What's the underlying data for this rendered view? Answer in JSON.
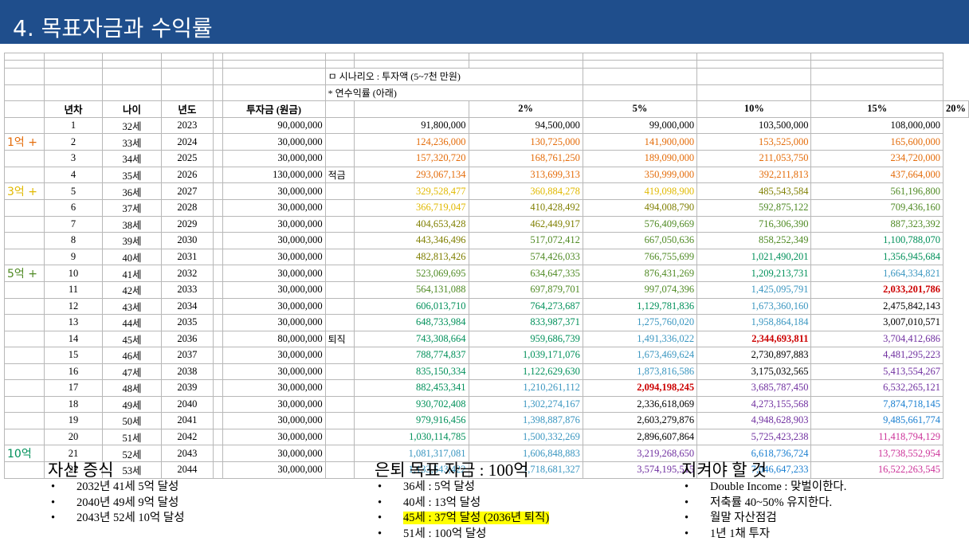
{
  "header": {
    "title": "4. 목표자금과 수익률",
    "bg": "#1f4e8c"
  },
  "table": {
    "scenario_line": "ㅁ 시나리오 : 투자액 (5~7천 만원)",
    "rate_line": "* 연수익률 (아래)",
    "headers": [
      "년차",
      "나이",
      "년도",
      "투자금 (원금)",
      "2%",
      "5%",
      "10%",
      "15%",
      "20%"
    ],
    "rows": [
      {
        "mark": "",
        "n": "1",
        "age": "32세",
        "year": "2023",
        "inv": "90,000,000",
        "note": "",
        "v": [
          "91,800,000",
          "94,500,000",
          "99,000,000",
          "103,500,000",
          "108,000,000"
        ],
        "c": [
          "#000000",
          "#000000",
          "#000000",
          "#000000",
          "#000000"
        ]
      },
      {
        "mark": "1억 +",
        "n": "2",
        "age": "33세",
        "year": "2024",
        "inv": "30,000,000",
        "note": "",
        "v": [
          "124,236,000",
          "130,725,000",
          "141,900,000",
          "153,525,000",
          "165,600,000"
        ],
        "c": [
          "#e46c0a",
          "#e46c0a",
          "#e46c0a",
          "#e46c0a",
          "#e46c0a"
        ]
      },
      {
        "mark": "",
        "n": "3",
        "age": "34세",
        "year": "2025",
        "inv": "30,000,000",
        "note": "",
        "v": [
          "157,320,720",
          "168,761,250",
          "189,090,000",
          "211,053,750",
          "234,720,000"
        ],
        "c": [
          "#e46c0a",
          "#e46c0a",
          "#e46c0a",
          "#e46c0a",
          "#e46c0a"
        ]
      },
      {
        "mark": "",
        "n": "4",
        "age": "35세",
        "year": "2026",
        "inv": "130,000,000",
        "note": "적금",
        "v": [
          "293,067,134",
          "313,699,313",
          "350,999,000",
          "392,211,813",
          "437,664,000"
        ],
        "c": [
          "#e46c0a",
          "#e46c0a",
          "#e46c0a",
          "#e46c0a",
          "#e46c0a"
        ]
      },
      {
        "mark": "3억 +",
        "n": "5",
        "age": "36세",
        "year": "2027",
        "inv": "30,000,000",
        "note": "",
        "v": [
          "329,528,477",
          "360,884,278",
          "419,098,900",
          "485,543,584",
          "561,196,800"
        ],
        "c": [
          "#e1b900",
          "#e1b900",
          "#e1b900",
          "#7f7f00",
          "#4f8a24"
        ]
      },
      {
        "mark": "",
        "n": "6",
        "age": "37세",
        "year": "2028",
        "inv": "30,000,000",
        "note": "",
        "v": [
          "366,719,047",
          "410,428,492",
          "494,008,790",
          "592,875,122",
          "709,436,160"
        ],
        "c": [
          "#e1b900",
          "#7f7f00",
          "#7f7f00",
          "#4f8a24",
          "#4f8a24"
        ]
      },
      {
        "mark": "",
        "n": "7",
        "age": "38세",
        "year": "2029",
        "inv": "30,000,000",
        "note": "",
        "v": [
          "404,653,428",
          "462,449,917",
          "576,409,669",
          "716,306,390",
          "887,323,392"
        ],
        "c": [
          "#7f7f00",
          "#7f7f00",
          "#4f8a24",
          "#4f8a24",
          "#4f8a24"
        ]
      },
      {
        "mark": "",
        "n": "8",
        "age": "39세",
        "year": "2030",
        "inv": "30,000,000",
        "note": "",
        "v": [
          "443,346,496",
          "517,072,412",
          "667,050,636",
          "858,252,349",
          "1,100,788,070"
        ],
        "c": [
          "#7f7f00",
          "#4f8a24",
          "#4f8a24",
          "#4f8a24",
          "#00905a"
        ]
      },
      {
        "mark": "",
        "n": "9",
        "age": "40세",
        "year": "2031",
        "inv": "30,000,000",
        "note": "",
        "v": [
          "482,813,426",
          "574,426,033",
          "766,755,699",
          "1,021,490,201",
          "1,356,945,684"
        ],
        "c": [
          "#7f7f00",
          "#4f8a24",
          "#4f8a24",
          "#00905a",
          "#00905a"
        ]
      },
      {
        "mark": "5억 +",
        "n": "10",
        "age": "41세",
        "year": "2032",
        "inv": "30,000,000",
        "note": "",
        "v": [
          "523,069,695",
          "634,647,335",
          "876,431,269",
          "1,209,213,731",
          "1,664,334,821"
        ],
        "c": [
          "#4f8a24",
          "#4f8a24",
          "#4f8a24",
          "#00905a",
          "#3a96c0"
        ]
      },
      {
        "mark": "",
        "n": "11",
        "age": "42세",
        "year": "2033",
        "inv": "30,000,000",
        "note": "",
        "v": [
          "564,131,088",
          "697,879,701",
          "997,074,396",
          "1,425,095,791",
          "2,033,201,786"
        ],
        "c": [
          "#4f8a24",
          "#4f8a24",
          "#4f8a24",
          "#3a96c0",
          "#cc0000"
        ]
      },
      {
        "mark": "",
        "n": "12",
        "age": "43세",
        "year": "2034",
        "inv": "30,000,000",
        "note": "",
        "v": [
          "606,013,710",
          "764,273,687",
          "1,129,781,836",
          "1,673,360,160",
          "2,475,842,143"
        ],
        "c": [
          "#00905a",
          "#00905a",
          "#00905a",
          "#3a96c0",
          "#000000"
        ]
      },
      {
        "mark": "",
        "n": "13",
        "age": "44세",
        "year": "2035",
        "inv": "30,000,000",
        "note": "",
        "v": [
          "648,733,984",
          "833,987,371",
          "1,275,760,020",
          "1,958,864,184",
          "3,007,010,571"
        ],
        "c": [
          "#00905a",
          "#00905a",
          "#3a96c0",
          "#3a96c0",
          "#000000"
        ]
      },
      {
        "mark": "",
        "n": "14",
        "age": "45세",
        "year": "2036",
        "inv": "80,000,000",
        "note": "퇴직",
        "v": [
          "743,308,664",
          "959,686,739",
          "1,491,336,022",
          "2,344,693,811",
          "3,704,412,686"
        ],
        "c": [
          "#00905a",
          "#00905a",
          "#3a96c0",
          "#cc0000",
          "#7030a0"
        ]
      },
      {
        "mark": "",
        "n": "15",
        "age": "46세",
        "year": "2037",
        "inv": "30,000,000",
        "note": "",
        "v": [
          "788,774,837",
          "1,039,171,076",
          "1,673,469,624",
          "2,730,897,883",
          "4,481,295,223"
        ],
        "c": [
          "#00905a",
          "#00905a",
          "#3a96c0",
          "#000000",
          "#7030a0"
        ]
      },
      {
        "mark": "",
        "n": "16",
        "age": "47세",
        "year": "2038",
        "inv": "30,000,000",
        "note": "",
        "v": [
          "835,150,334",
          "1,122,629,630",
          "1,873,816,586",
          "3,175,032,565",
          "5,413,554,267"
        ],
        "c": [
          "#00905a",
          "#00905a",
          "#3a96c0",
          "#000000",
          "#7030a0"
        ]
      },
      {
        "mark": "",
        "n": "17",
        "age": "48세",
        "year": "2039",
        "inv": "30,000,000",
        "note": "",
        "v": [
          "882,453,341",
          "1,210,261,112",
          "2,094,198,245",
          "3,685,787,450",
          "6,532,265,121"
        ],
        "c": [
          "#00905a",
          "#3a96c0",
          "#cc0000",
          "#7030a0",
          "#7030a0"
        ]
      },
      {
        "mark": "",
        "n": "18",
        "age": "49세",
        "year": "2040",
        "inv": "30,000,000",
        "note": "",
        "v": [
          "930,702,408",
          "1,302,274,167",
          "2,336,618,069",
          "4,273,155,568",
          "7,874,718,145"
        ],
        "c": [
          "#00905a",
          "#3a96c0",
          "#000000",
          "#7030a0",
          "#1a7fd0"
        ]
      },
      {
        "mark": "",
        "n": "19",
        "age": "50세",
        "year": "2041",
        "inv": "30,000,000",
        "note": "",
        "v": [
          "979,916,456",
          "1,398,887,876",
          "2,603,279,876",
          "4,948,628,903",
          "9,485,661,774"
        ],
        "c": [
          "#00905a",
          "#3a96c0",
          "#000000",
          "#7030a0",
          "#1a7fd0"
        ]
      },
      {
        "mark": "",
        "n": "20",
        "age": "51세",
        "year": "2042",
        "inv": "30,000,000",
        "note": "",
        "v": [
          "1,030,114,785",
          "1,500,332,269",
          "2,896,607,864",
          "5,725,423,238",
          "11,418,794,129"
        ],
        "c": [
          "#00905a",
          "#3a96c0",
          "#000000",
          "#7030a0",
          "#cc3399"
        ]
      },
      {
        "mark": "10억",
        "n": "21",
        "age": "52세",
        "year": "2043",
        "inv": "30,000,000",
        "note": "",
        "v": [
          "1,081,317,081",
          "1,606,848,883",
          "3,219,268,650",
          "6,618,736,724",
          "13,738,552,954"
        ],
        "c": [
          "#3a96c0",
          "#3a96c0",
          "#7030a0",
          "#1a7fd0",
          "#cc3399"
        ]
      },
      {
        "mark": "",
        "n": "22",
        "age": "53세",
        "year": "2044",
        "inv": "30,000,000",
        "note": "",
        "v": [
          "1,133,543,422",
          "1,718,681,327",
          "3,574,195,515",
          "7,046,647,233",
          "16,522,263,545"
        ],
        "c": [
          "#3a96c0",
          "#3a96c0",
          "#7030a0",
          "#1a7fd0",
          "#cc3399"
        ]
      }
    ],
    "mark_colors": {
      "1억 +": "#e46c0a",
      "3억 +": "#e1b900",
      "5억 +": "#4f8a24",
      "10억": "#00905a"
    },
    "bold_cells": [
      "10-4",
      "13-3",
      "16-2"
    ]
  },
  "sections": [
    {
      "title": "자산 증식",
      "items": [
        "2032년 41세 5억 달성",
        "2040년 49세 9억 달성",
        "2043년 52세 10억 달성"
      ]
    },
    {
      "title": "은퇴 목표 자금 : 100억",
      "items": [
        "36세 : 5억 달성",
        "40세 : 13억 달성",
        "45세 : 37억 달성 (2036년 퇴직)",
        "51세 : 100억 달성"
      ],
      "highlight_index": 2
    },
    {
      "title": "지켜야 할 것",
      "items": [
        "Double Income : 맞벌이한다.",
        "저축률 40~50% 유지한다.",
        "월말 자산점검",
        "1년 1채 투자"
      ]
    }
  ],
  "bullet": "•"
}
